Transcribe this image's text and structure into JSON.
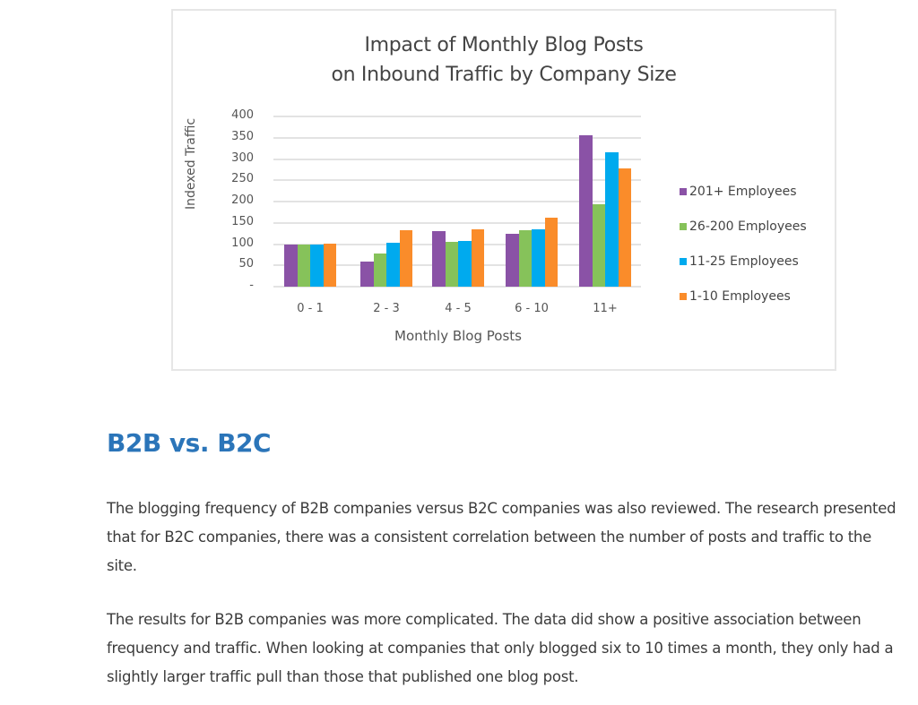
{
  "chart_data": {
    "type": "bar",
    "title": "Impact of Monthly Blog Posts on Inbound Traffic by Company Size",
    "title_lines": [
      "Impact of Monthly Blog Posts",
      "on Inbound Traffic by Company Size"
    ],
    "xlabel": "Monthly Blog Posts",
    "ylabel": "Indexed Traffic",
    "categories": [
      "0 - 1",
      "2 - 3",
      "4 - 5",
      "6 - 10",
      "11+"
    ],
    "yticks": [
      "400",
      "350",
      "300",
      "250",
      "200",
      "150",
      "100",
      "50",
      "-"
    ],
    "ylim": [
      0,
      400
    ],
    "grid": true,
    "legend_position": "right",
    "series": [
      {
        "name": "201+ Employees",
        "color": "#8a52a6",
        "values": [
          100,
          60,
          130,
          125,
          355
        ]
      },
      {
        "name": "26-200 Employees",
        "color": "#86c25a",
        "values": [
          100,
          78,
          105,
          132,
          193
        ]
      },
      {
        "name": "11-25 Employees",
        "color": "#00aaee",
        "values": [
          100,
          103,
          107,
          135,
          315
        ]
      },
      {
        "name": "1-10 Employees",
        "color": "#fa8c2a",
        "values": [
          101,
          132,
          134,
          162,
          277
        ]
      }
    ]
  },
  "article": {
    "heading": "B2B vs. B2C",
    "paragraphs": [
      "The blogging frequency of B2B companies versus B2C companies was also reviewed. The research presented that for B2C companies, there was a consistent correlation between the number of posts and traffic to the site.",
      "The results for B2B companies was more complicated. The data did show a positive association between frequency and traffic. When looking at companies that only blogged six to 10 times a month, they only had a slightly larger traffic pull than those that published one blog post."
    ]
  },
  "colors": {
    "heading": "#2b75b9",
    "body_text": "#3b3b3b",
    "chart_border": "#e6e6e6"
  }
}
